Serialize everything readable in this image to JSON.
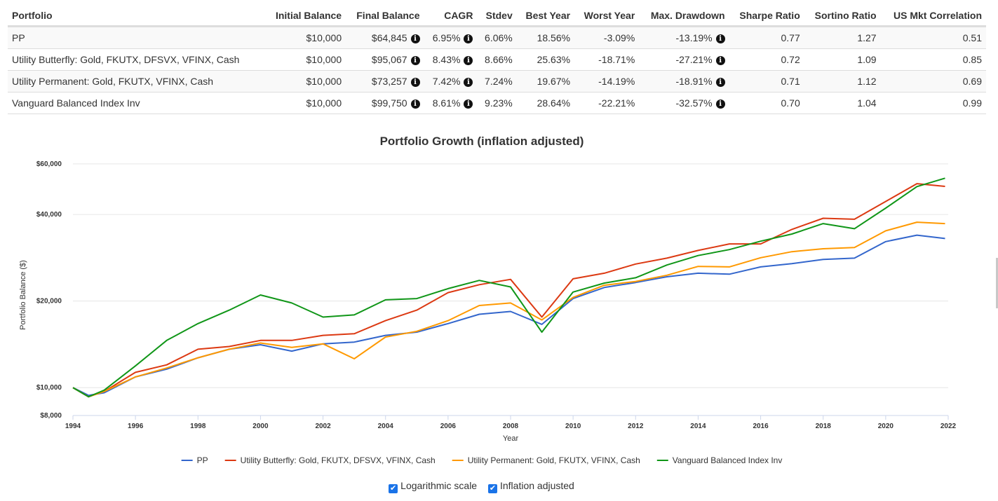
{
  "table": {
    "headers": [
      "Portfolio",
      "Initial Balance",
      "Final Balance",
      "CAGR",
      "Stdev",
      "Best Year",
      "Worst Year",
      "Max. Drawdown",
      "Sharpe Ratio",
      "Sortino Ratio",
      "US Mkt Correlation"
    ],
    "rows": [
      {
        "portfolio": "PP",
        "initial": "$10,000",
        "final": "$64,845",
        "cagr": "6.95%",
        "stdev": "6.06%",
        "best": "18.56%",
        "worst": "-3.09%",
        "drawdown": "-13.19%",
        "sharpe": "0.77",
        "sortino": "1.27",
        "corr": "0.51"
      },
      {
        "portfolio": "Utility Butterfly: Gold, FKUTX, DFSVX, VFINX, Cash",
        "initial": "$10,000",
        "final": "$95,067",
        "cagr": "8.43%",
        "stdev": "8.66%",
        "best": "25.63%",
        "worst": "-18.71%",
        "drawdown": "-27.21%",
        "sharpe": "0.72",
        "sortino": "1.09",
        "corr": "0.85"
      },
      {
        "portfolio": "Utility Permanent: Gold, FKUTX, VFINX, Cash",
        "initial": "$10,000",
        "final": "$73,257",
        "cagr": "7.42%",
        "stdev": "7.24%",
        "best": "19.67%",
        "worst": "-14.19%",
        "drawdown": "-18.91%",
        "sharpe": "0.71",
        "sortino": "1.12",
        "corr": "0.69"
      },
      {
        "portfolio": "Vanguard Balanced Index Inv",
        "initial": "$10,000",
        "final": "$99,750",
        "cagr": "8.61%",
        "stdev": "9.23%",
        "best": "28.64%",
        "worst": "-22.21%",
        "drawdown": "-32.57%",
        "sharpe": "0.70",
        "sortino": "1.04",
        "corr": "0.99"
      }
    ],
    "info_glyph": "i"
  },
  "chart_data": {
    "type": "line",
    "title": "Portfolio Growth (inflation adjusted)",
    "xlabel": "Year",
    "ylabel": "Portfolio Balance ($)",
    "y_scale": "log",
    "xlim": [
      1994,
      2022
    ],
    "ylim": [
      8000,
      62000
    ],
    "x_ticks": [
      1994,
      1996,
      1998,
      2000,
      2002,
      2004,
      2006,
      2008,
      2010,
      2012,
      2014,
      2016,
      2018,
      2020,
      2022
    ],
    "y_ticks": [
      8000,
      10000,
      20000,
      40000,
      60000
    ],
    "y_tick_labels": [
      "$8,000",
      "$10,000",
      "$20,000",
      "$40,000",
      "$60,000"
    ],
    "grid": true,
    "legend_position": "bottom",
    "series": [
      {
        "name": "PP",
        "color": "#3366cc",
        "x": [
          1994,
          1994.5,
          1995,
          1996,
          1997,
          1998,
          1999,
          2000,
          2001,
          2002,
          2003,
          2004,
          2005,
          2006,
          2007,
          2008,
          2009,
          2010,
          2011,
          2012,
          2013,
          2014,
          2015,
          2016,
          2017,
          2018,
          2019,
          2020,
          2021,
          2021.9
        ],
        "y": [
          10000,
          9400,
          9600,
          10900,
          11600,
          12700,
          13600,
          14100,
          13400,
          14200,
          14400,
          15200,
          15600,
          16700,
          18000,
          18400,
          16600,
          20400,
          22300,
          23200,
          24300,
          25000,
          24800,
          26300,
          27000,
          27900,
          28200,
          32200,
          33900,
          33000
        ]
      },
      {
        "name": "Utility Butterfly: Gold, FKUTX, DFSVX, VFINX, Cash",
        "color": "#dc3912",
        "x": [
          1994,
          1994.5,
          1995,
          1996,
          1997,
          1998,
          1999,
          2000,
          2001,
          2002,
          2003,
          2004,
          2005,
          2006,
          2007,
          2008,
          2009,
          2010,
          2011,
          2012,
          2013,
          2014,
          2015,
          2016,
          2017,
          2018,
          2019,
          2020,
          2021,
          2021.9
        ],
        "y": [
          10000,
          9300,
          9700,
          11300,
          12000,
          13600,
          13900,
          14600,
          14600,
          15200,
          15400,
          17100,
          18600,
          21400,
          22800,
          23800,
          17600,
          23900,
          25000,
          26900,
          28200,
          30000,
          31600,
          31600,
          35500,
          38800,
          38500,
          44400,
          51200,
          50100
        ]
      },
      {
        "name": "Utility Permanent: Gold, FKUTX, VFINX, Cash",
        "color": "#ff9900",
        "x": [
          1994,
          1994.5,
          1995,
          1996,
          1997,
          1998,
          1999,
          2000,
          2001,
          2002,
          2003,
          2004,
          2005,
          2006,
          2007,
          2008,
          2009,
          2010,
          2011,
          2012,
          2013,
          2014,
          2015,
          2016,
          2017,
          2018,
          2019,
          2020,
          2021,
          2021.9
        ],
        "y": [
          10000,
          9300,
          9700,
          10900,
          11700,
          12700,
          13600,
          14300,
          13800,
          14200,
          12600,
          15000,
          15700,
          17100,
          19300,
          19700,
          17200,
          20600,
          22700,
          23400,
          24600,
          26400,
          26300,
          28300,
          29700,
          30400,
          30700,
          35100,
          37600,
          37200
        ]
      },
      {
        "name": "Vanguard Balanced Index Inv",
        "color": "#109618",
        "x": [
          1994,
          1994.5,
          1995,
          1996,
          1997,
          1998,
          1999,
          2000,
          2001,
          2002,
          2003,
          2004,
          2005,
          2006,
          2007,
          2008,
          2009,
          2010,
          2011,
          2012,
          2013,
          2014,
          2015,
          2016,
          2017,
          2018,
          2019,
          2020,
          2021,
          2021.9
        ],
        "y": [
          10000,
          9300,
          9800,
          11900,
          14600,
          16700,
          18600,
          21000,
          19700,
          17600,
          17900,
          20200,
          20400,
          22100,
          23600,
          22400,
          15600,
          21500,
          23100,
          24100,
          26700,
          28800,
          30200,
          32300,
          34200,
          37200,
          35700,
          42100,
          50000,
          53500
        ]
      }
    ]
  },
  "options": {
    "log_scale": "Logarithmic scale",
    "inflation": "Inflation adjusted"
  }
}
